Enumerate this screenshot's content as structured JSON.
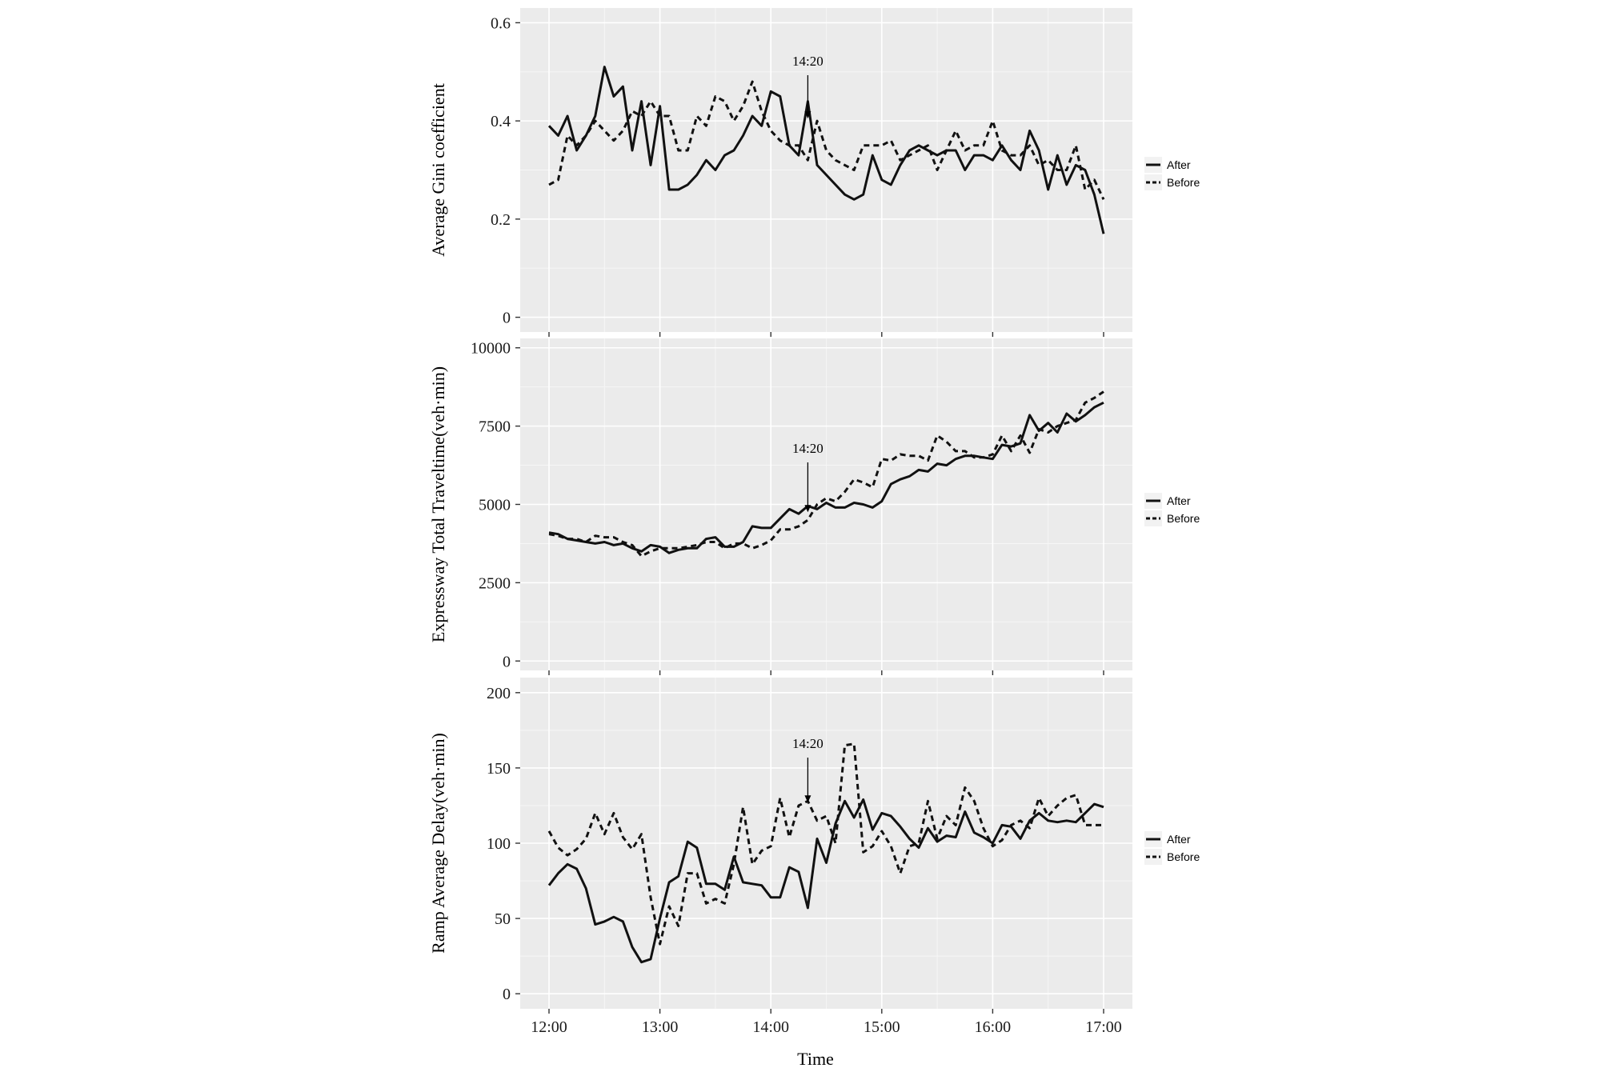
{
  "xlabel": "Time",
  "x_ticks": [
    "12:00",
    "13:00",
    "14:00",
    "15:00",
    "16:00",
    "17:00"
  ],
  "legend": [
    "After",
    "Before"
  ],
  "chart_data": [
    {
      "type": "line",
      "title": "",
      "xlabel": "Time",
      "ylabel": "Average Gini coefficient",
      "xlim": [
        "12:00",
        "17:00"
      ],
      "ylim": [
        -0.03,
        0.63
      ],
      "y_ticks": [
        "0",
        "0.2",
        "0.4",
        "0.6"
      ],
      "y_tick_values": [
        0,
        0.2,
        0.4,
        0.6
      ],
      "grid": true,
      "legend_position": "right",
      "annotation": {
        "text": "14:20",
        "x": 860,
        "y_arrow_tip": 0.405
      },
      "series": [
        {
          "name": "After",
          "style": "solid",
          "x": [
            720,
            725,
            730,
            735,
            740,
            745,
            750,
            755,
            760,
            765,
            770,
            775,
            780,
            785,
            790,
            795,
            800,
            805,
            810,
            815,
            820,
            825,
            830,
            835,
            840,
            845,
            850,
            855,
            860,
            865,
            870,
            875,
            880,
            885,
            890,
            895,
            900,
            905,
            910,
            915,
            920,
            925,
            930,
            935,
            940,
            945,
            950,
            955,
            960,
            965,
            970,
            975,
            980,
            985,
            990,
            995,
            1000,
            1005,
            1010,
            1015,
            1020
          ],
          "y": [
            0.39,
            0.37,
            0.41,
            0.34,
            0.37,
            0.41,
            0.51,
            0.45,
            0.47,
            0.34,
            0.44,
            0.31,
            0.43,
            0.26,
            0.26,
            0.27,
            0.29,
            0.32,
            0.3,
            0.33,
            0.34,
            0.37,
            0.41,
            0.39,
            0.46,
            0.45,
            0.35,
            0.33,
            0.44,
            0.31,
            0.29,
            0.27,
            0.25,
            0.24,
            0.25,
            0.33,
            0.28,
            0.27,
            0.31,
            0.34,
            0.35,
            0.34,
            0.33,
            0.34,
            0.34,
            0.3,
            0.33,
            0.33,
            0.32,
            0.35,
            0.32,
            0.3,
            0.38,
            0.34,
            0.26,
            0.33,
            0.27,
            0.31,
            0.3,
            0.25,
            0.17
          ]
        },
        {
          "name": "Before",
          "style": "dashed",
          "x": [
            720,
            725,
            730,
            735,
            740,
            745,
            750,
            755,
            760,
            765,
            770,
            775,
            780,
            785,
            790,
            795,
            800,
            805,
            810,
            815,
            820,
            825,
            830,
            835,
            840,
            845,
            850,
            855,
            860,
            865,
            870,
            875,
            880,
            885,
            890,
            895,
            900,
            905,
            910,
            915,
            920,
            925,
            930,
            935,
            940,
            945,
            950,
            955,
            960,
            965,
            970,
            975,
            980,
            985,
            990,
            995,
            1000,
            1005,
            1010,
            1015,
            1020
          ],
          "y": [
            0.27,
            0.28,
            0.37,
            0.35,
            0.37,
            0.4,
            0.38,
            0.36,
            0.38,
            0.42,
            0.41,
            0.44,
            0.41,
            0.41,
            0.34,
            0.34,
            0.41,
            0.39,
            0.45,
            0.44,
            0.4,
            0.43,
            0.48,
            0.42,
            0.38,
            0.36,
            0.35,
            0.35,
            0.32,
            0.4,
            0.34,
            0.32,
            0.31,
            0.3,
            0.35,
            0.35,
            0.35,
            0.36,
            0.32,
            0.33,
            0.34,
            0.35,
            0.3,
            0.34,
            0.38,
            0.34,
            0.35,
            0.35,
            0.4,
            0.34,
            0.33,
            0.33,
            0.35,
            0.31,
            0.32,
            0.3,
            0.3,
            0.35,
            0.26,
            0.28,
            0.24
          ]
        }
      ]
    },
    {
      "type": "line",
      "title": "",
      "xlabel": "Time",
      "ylabel": "Expressway Total Traveltime(veh·min)",
      "xlim": [
        "12:00",
        "17:00"
      ],
      "ylim": [
        -300,
        10300
      ],
      "y_ticks": [
        "0",
        "2500",
        "5000",
        "7500",
        "10000"
      ],
      "y_tick_values": [
        0,
        2500,
        5000,
        7500,
        10000
      ],
      "grid": true,
      "legend_position": "right",
      "annotation": {
        "text": "14:20",
        "x": 860,
        "y_arrow_tip": 4750
      },
      "series": [
        {
          "name": "After",
          "style": "solid",
          "x": [
            720,
            725,
            730,
            735,
            740,
            745,
            750,
            755,
            760,
            765,
            770,
            775,
            780,
            785,
            790,
            795,
            800,
            805,
            810,
            815,
            820,
            825,
            830,
            835,
            840,
            845,
            850,
            855,
            860,
            865,
            870,
            875,
            880,
            885,
            890,
            895,
            900,
            905,
            910,
            915,
            920,
            925,
            930,
            935,
            940,
            945,
            950,
            955,
            960,
            965,
            970,
            975,
            980,
            985,
            990,
            995,
            1000,
            1005,
            1010,
            1015,
            1020
          ],
          "y": [
            4100,
            4050,
            3900,
            3850,
            3800,
            3750,
            3800,
            3700,
            3750,
            3600,
            3500,
            3700,
            3650,
            3450,
            3550,
            3600,
            3600,
            3900,
            3950,
            3650,
            3650,
            3800,
            4300,
            4250,
            4250,
            4550,
            4850,
            4700,
            4950,
            4850,
            5050,
            4900,
            4900,
            5050,
            5000,
            4900,
            5100,
            5650,
            5800,
            5900,
            6100,
            6050,
            6300,
            6250,
            6450,
            6550,
            6550,
            6500,
            6450,
            6900,
            6850,
            6950,
            7850,
            7350,
            7600,
            7300,
            7900,
            7650,
            7850,
            8100,
            8250
          ]
        },
        {
          "name": "Before",
          "style": "dashed",
          "x": [
            720,
            725,
            730,
            735,
            740,
            745,
            750,
            755,
            760,
            765,
            770,
            775,
            780,
            785,
            790,
            795,
            800,
            805,
            810,
            815,
            820,
            825,
            830,
            835,
            840,
            845,
            850,
            855,
            860,
            865,
            870,
            875,
            880,
            885,
            890,
            895,
            900,
            905,
            910,
            915,
            920,
            925,
            930,
            935,
            940,
            945,
            950,
            955,
            960,
            965,
            970,
            975,
            980,
            985,
            990,
            995,
            1000,
            1005,
            1010,
            1015,
            1020
          ],
          "y": [
            4050,
            4000,
            3900,
            3900,
            3800,
            4000,
            3950,
            3950,
            3800,
            3700,
            3350,
            3500,
            3600,
            3600,
            3600,
            3650,
            3700,
            3800,
            3800,
            3600,
            3750,
            3750,
            3600,
            3700,
            3850,
            4200,
            4200,
            4300,
            4500,
            5000,
            5200,
            5100,
            5400,
            5800,
            5700,
            5550,
            6450,
            6400,
            6600,
            6550,
            6550,
            6400,
            7200,
            7000,
            6700,
            6700,
            6500,
            6500,
            6600,
            7200,
            6700,
            7200,
            6650,
            7400,
            7300,
            7500,
            7600,
            7700,
            8250,
            8400,
            8600
          ]
        }
      ]
    },
    {
      "type": "line",
      "title": "",
      "xlabel": "Time",
      "ylabel": "Ramp Average Delay(veh·min)",
      "xlim": [
        "12:00",
        "17:00"
      ],
      "ylim": [
        -10,
        210
      ],
      "y_ticks": [
        "0",
        "50",
        "100",
        "150",
        "200"
      ],
      "y_tick_values": [
        0,
        50,
        100,
        150,
        200
      ],
      "grid": true,
      "legend_position": "right",
      "annotation": {
        "text": "14:20",
        "x": 860,
        "y_arrow_tip": 127
      },
      "series": [
        {
          "name": "After",
          "style": "solid",
          "x": [
            720,
            725,
            730,
            735,
            740,
            745,
            750,
            755,
            760,
            765,
            770,
            775,
            780,
            785,
            790,
            795,
            800,
            805,
            810,
            815,
            820,
            825,
            830,
            835,
            840,
            845,
            850,
            855,
            860,
            865,
            870,
            875,
            880,
            885,
            890,
            895,
            900,
            905,
            910,
            915,
            920,
            925,
            930,
            935,
            940,
            945,
            950,
            955,
            960,
            965,
            970,
            975,
            980,
            985,
            990,
            995,
            1000,
            1005,
            1010,
            1015,
            1020
          ],
          "y": [
            72,
            80,
            86,
            83,
            70,
            46,
            48,
            51,
            48,
            31,
            21,
            23,
            50,
            74,
            78,
            101,
            97,
            73,
            73,
            69,
            91,
            74,
            73,
            72,
            64,
            64,
            84,
            81,
            57,
            103,
            87,
            113,
            128,
            117,
            129,
            109,
            120,
            118,
            111,
            103,
            97,
            110,
            101,
            105,
            104,
            121,
            107,
            104,
            100,
            112,
            111,
            103,
            115,
            120,
            115,
            114,
            115,
            114,
            120,
            126,
            124
          ]
        },
        {
          "name": "Before",
          "style": "dashed",
          "x": [
            720,
            725,
            730,
            735,
            740,
            745,
            750,
            755,
            760,
            765,
            770,
            775,
            780,
            785,
            790,
            795,
            800,
            805,
            810,
            815,
            820,
            825,
            830,
            835,
            840,
            845,
            850,
            855,
            860,
            865,
            870,
            875,
            880,
            885,
            890,
            895,
            900,
            905,
            910,
            915,
            920,
            925,
            930,
            935,
            940,
            945,
            950,
            955,
            960,
            965,
            970,
            975,
            980,
            985,
            990,
            995,
            1000,
            1005,
            1010,
            1015,
            1020
          ],
          "y": [
            108,
            97,
            92,
            96,
            103,
            120,
            106,
            120,
            104,
            96,
            106,
            64,
            33,
            58,
            45,
            80,
            80,
            60,
            63,
            60,
            86,
            124,
            86,
            95,
            98,
            130,
            104,
            125,
            128,
            115,
            118,
            100,
            165,
            166,
            94,
            98,
            108,
            98,
            80,
            98,
            100,
            128,
            103,
            118,
            112,
            137,
            128,
            110,
            98,
            102,
            112,
            115,
            110,
            130,
            118,
            125,
            130,
            132,
            112,
            112,
            112
          ]
        }
      ]
    }
  ]
}
